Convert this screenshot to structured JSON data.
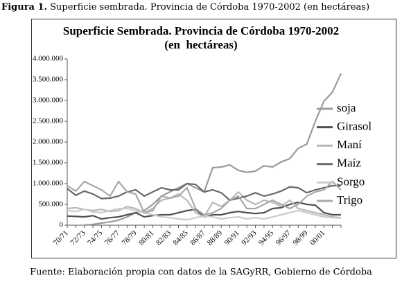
{
  "caption_label": "Figura 1.",
  "caption": "Superficie sembrada. Provincia de Córdoba 1970-2002 (en hectáreas)",
  "source": "Fuente: Elaboración propia con datos de la SAGyRR, Gobierno de Córdoba",
  "chart_data": {
    "type": "line",
    "title": "Superficie Sembrada. Provincia de Córdoba 1970-2002",
    "subtitle": "(en  hectáreas)",
    "categories": [
      "70/71",
      null,
      "72/73",
      null,
      "74/75",
      null,
      "76/77",
      null,
      "78/79",
      null,
      "80/81",
      null,
      "82/83",
      null,
      "84/85",
      null,
      "86/87",
      null,
      "88/89",
      null,
      "90/91",
      null,
      "92/93",
      null,
      "94/95",
      null,
      "96/97",
      null,
      "98/99",
      null,
      "00/01",
      null,
      null
    ],
    "ylim": [
      0,
      4000000
    ],
    "yticks": [
      0,
      {
        "value": 500000,
        "label": "500.000"
      },
      {
        "value": 1000000,
        "label": "1.000.000"
      },
      {
        "value": 1500000,
        "label": "1.500.000"
      },
      {
        "value": 2000000,
        "label": "2.000.000"
      },
      {
        "value": 2500000,
        "label": "2.500.000"
      },
      {
        "value": 3000000,
        "label": "3.000.000"
      },
      {
        "value": 3500000,
        "label": "3.500.000"
      },
      {
        "value": 4000000,
        "label": "4.000.000"
      }
    ],
    "legend": "right",
    "series": [
      {
        "name": "soja",
        "color": "#9a9a9a",
        "values": [
          null,
          null,
          0,
          20000,
          50000,
          80000,
          120000,
          200000,
          300000,
          350000,
          500000,
          700000,
          800000,
          900000,
          1000000,
          900000,
          800000,
          1380000,
          1400000,
          1450000,
          1320000,
          1270000,
          1300000,
          1430000,
          1400000,
          1520000,
          1600000,
          1850000,
          1950000,
          2500000,
          2980000,
          3200000,
          3650000
        ]
      },
      {
        "name": "Girasol",
        "color": "#505050",
        "values": [
          220000,
          210000,
          200000,
          230000,
          150000,
          180000,
          200000,
          250000,
          300000,
          200000,
          230000,
          250000,
          250000,
          300000,
          350000,
          380000,
          200000,
          250000,
          250000,
          300000,
          330000,
          300000,
          280000,
          300000,
          400000,
          420000,
          500000,
          550000,
          500000,
          480000,
          300000,
          250000,
          250000
        ]
      },
      {
        "name": "Maní",
        "color": "#b8b8b8",
        "values": [
          400000,
          420000,
          380000,
          350000,
          380000,
          330000,
          350000,
          450000,
          400000,
          300000,
          400000,
          600000,
          650000,
          750000,
          600000,
          300000,
          200000,
          550000,
          450000,
          600000,
          800000,
          600000,
          500000,
          600000,
          550000,
          450000,
          600000,
          400000,
          350000,
          300000,
          250000,
          200000,
          180000
        ]
      },
      {
        "name": "Maíz",
        "color": "#686868",
        "values": [
          880000,
          720000,
          820000,
          750000,
          640000,
          650000,
          700000,
          800000,
          850000,
          700000,
          800000,
          900000,
          850000,
          850000,
          1000000,
          980000,
          800000,
          850000,
          780000,
          600000,
          650000,
          700000,
          780000,
          700000,
          750000,
          820000,
          920000,
          900000,
          780000,
          850000,
          900000,
          950000,
          950000
        ]
      },
      {
        "name": "Sorgo",
        "color": "#cccccc",
        "values": [
          350000,
          330000,
          380000,
          320000,
          300000,
          350000,
          400000,
          400000,
          350000,
          300000,
          250000,
          200000,
          180000,
          150000,
          130000,
          180000,
          220000,
          200000,
          150000,
          180000,
          200000,
          150000,
          180000,
          150000,
          200000,
          250000,
          300000,
          350000,
          300000,
          250000,
          200000,
          180000,
          170000
        ]
      },
      {
        "name": "Trigo",
        "color": "#a8a8a8",
        "values": [
          950000,
          820000,
          1050000,
          950000,
          850000,
          700000,
          1050000,
          800000,
          750000,
          300000,
          350000,
          700000,
          650000,
          700000,
          900000,
          400000,
          250000,
          300000,
          400000,
          600000,
          700000,
          400000,
          400000,
          500000,
          600000,
          500000,
          400000,
          500000,
          700000,
          800000,
          850000,
          1050000,
          850000
        ]
      }
    ]
  }
}
